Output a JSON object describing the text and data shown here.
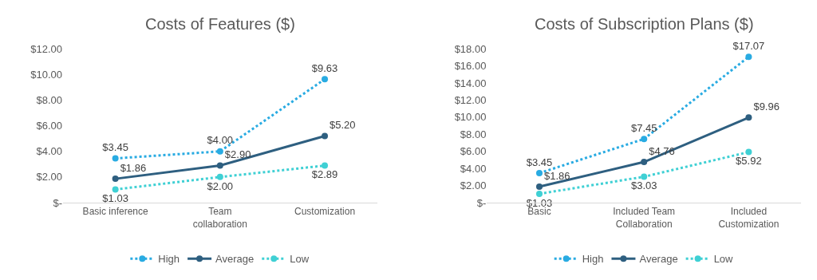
{
  "chart_data": [
    {
      "type": "line",
      "title": "Costs of Features ($)",
      "categories": [
        "Basic inference",
        "Team collaboration",
        "Customization"
      ],
      "series": [
        {
          "name": "High",
          "color": "#29abe2",
          "line_style": "dotted",
          "values": [
            3.45,
            4.0,
            9.63
          ],
          "value_labels": [
            "$3.45",
            "$4.00",
            "$9.63"
          ]
        },
        {
          "name": "Average",
          "color": "#2e5f80",
          "line_style": "solid",
          "values": [
            1.86,
            2.9,
            5.2
          ],
          "value_labels": [
            "$1.86",
            "$2.90",
            "$5.20"
          ]
        },
        {
          "name": "Low",
          "color": "#3fd0d4",
          "line_style": "dotted",
          "values": [
            1.03,
            2.0,
            2.89
          ],
          "value_labels": [
            "$1.03",
            "$2.00",
            "$2.89"
          ]
        }
      ],
      "ylim": [
        0,
        12
      ],
      "yticks": [
        {
          "value": 0,
          "label": "$-"
        },
        {
          "value": 2,
          "label": "$2.00"
        },
        {
          "value": 4,
          "label": "$4.00"
        },
        {
          "value": 6,
          "label": "$6.00"
        },
        {
          "value": 8,
          "label": "$8.00"
        },
        {
          "value": 10,
          "label": "$10.00"
        },
        {
          "value": 12,
          "label": "$12.00"
        }
      ],
      "marker": "circle",
      "grid": false,
      "legend": "bottom"
    },
    {
      "type": "line",
      "title": "Costs of Subscription Plans ($)",
      "categories": [
        "Basic",
        "Included Team Collaboration",
        "Included Customization"
      ],
      "series": [
        {
          "name": "High",
          "color": "#29abe2",
          "line_style": "dotted",
          "values": [
            3.45,
            7.45,
            17.07
          ],
          "value_labels": [
            "$3.45",
            "$7.45",
            "$17.07"
          ]
        },
        {
          "name": "Average",
          "color": "#2e5f80",
          "line_style": "solid",
          "values": [
            1.86,
            4.76,
            9.96
          ],
          "value_labels": [
            "$1.86",
            "$4.76",
            "$9.96"
          ]
        },
        {
          "name": "Low",
          "color": "#3fd0d4",
          "line_style": "dotted",
          "values": [
            1.03,
            3.03,
            5.92
          ],
          "value_labels": [
            "$1.03",
            "$3.03",
            "$5.92"
          ]
        }
      ],
      "ylim": [
        0,
        18
      ],
      "yticks": [
        {
          "value": 0,
          "label": "$-"
        },
        {
          "value": 2,
          "label": "$2.00"
        },
        {
          "value": 4,
          "label": "$4.00"
        },
        {
          "value": 6,
          "label": "$6.00"
        },
        {
          "value": 8,
          "label": "$8.00"
        },
        {
          "value": 10,
          "label": "$10.00"
        },
        {
          "value": 12,
          "label": "$12.00"
        },
        {
          "value": 14,
          "label": "$14.00"
        },
        {
          "value": 16,
          "label": "$16.00"
        },
        {
          "value": 18,
          "label": "$18.00"
        }
      ],
      "marker": "circle",
      "grid": false,
      "legend": "bottom"
    }
  ]
}
